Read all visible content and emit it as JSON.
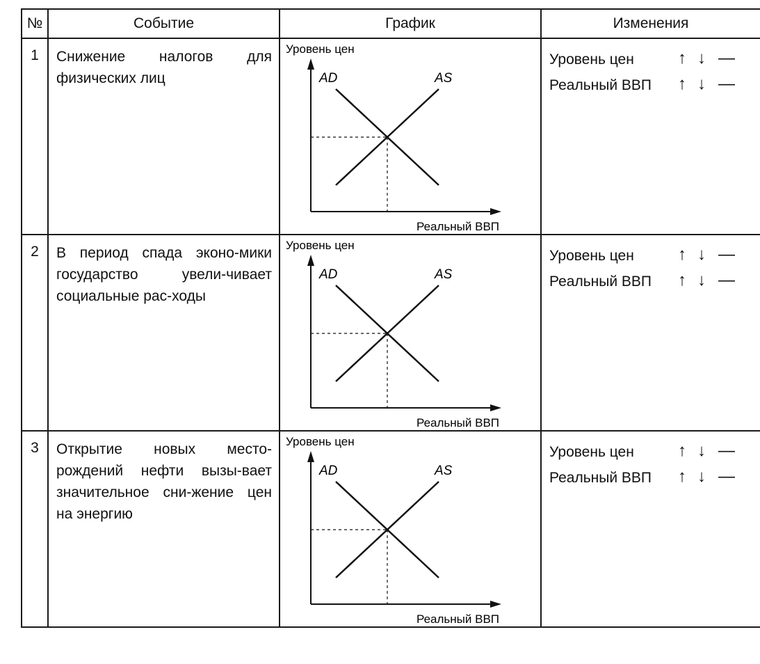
{
  "header": {
    "col_num": "№",
    "col_event": "Событие",
    "col_graph": "График",
    "col_changes": "Изменения"
  },
  "graph_labels": {
    "y_axis": "Уровень цен",
    "x_axis": "Реальный ВВП",
    "curve_ad": "AD",
    "curve_as": "AS"
  },
  "change_labels": {
    "price": "Уровень цен",
    "gdp": "Реальный ВВП"
  },
  "change_symbols": {
    "up": "↑",
    "down": "↓",
    "same": "—"
  },
  "rows": [
    {
      "num": "1",
      "event": "Снижение налогов для физических лиц"
    },
    {
      "num": "2",
      "event": "В период спада эконо-мики государство увели-чивает социальные рас-ходы"
    },
    {
      "num": "3",
      "event": "Открытие новых место-рождений нефти вызы-вает значительное сни-жение цен на энергию"
    }
  ]
}
